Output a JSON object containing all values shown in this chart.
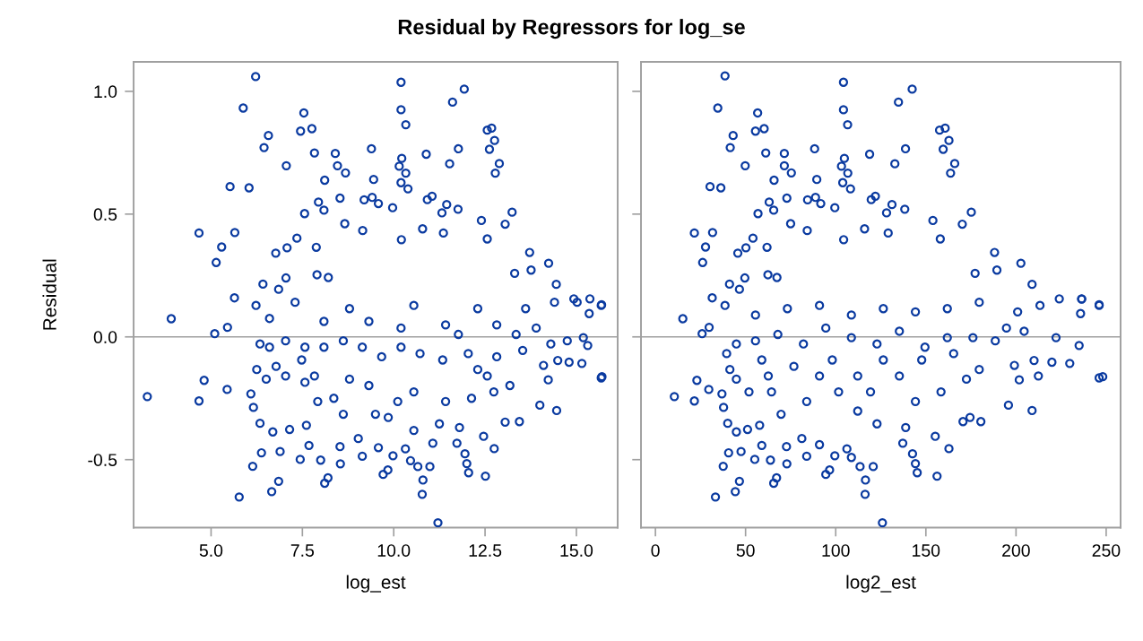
{
  "chart_data": [
    {
      "type": "scatter",
      "title": "Residual by Regressors for log_se",
      "xlabel": "log_est",
      "ylabel": "Residual",
      "marker": "circle",
      "grid": false,
      "xlim": [
        2.88,
        16.13
      ],
      "ylim": [
        -0.777,
        1.12
      ],
      "xticks": [
        {
          "value": 5,
          "label": "5.0"
        },
        {
          "value": 7.5,
          "label": "7.5"
        },
        {
          "value": 10,
          "label": "10.0"
        },
        {
          "value": 12.5,
          "label": "12.5"
        },
        {
          "value": 15,
          "label": "15.0"
        }
      ],
      "yticks": [
        {
          "value": -0.5,
          "label": "-0.5"
        },
        {
          "value": 0,
          "label": "0.0"
        },
        {
          "value": 0.5,
          "label": "0.5"
        },
        {
          "value": 1,
          "label": "1.0"
        }
      ],
      "ref_lines": [
        {
          "axis": "y",
          "value": 0,
          "color": "#a0a0a0"
        }
      ],
      "series": [
        {
          "color": "#0a3aa0",
          "x": [
            6.22,
            10.2,
            11.93,
            5.88,
            10.2,
            11.61,
            7.54,
            10.33,
            7.45,
            7.76,
            6.57,
            6.45,
            12.56,
            12.68,
            12.76,
            12.62,
            12.89,
            12.78,
            11.77,
            11.53,
            9.39,
            10.89,
            7.83,
            8.4,
            7.06,
            8.46,
            8.68,
            10.22,
            10.15,
            10.33,
            10.2,
            10.39,
            5.52,
            6.04,
            8.11,
            9.45,
            8.53,
            9.19,
            9.41,
            9.58,
            7.94,
            8.09,
            7.56,
            9.97,
            10.92,
            11.05,
            11.45,
            11.76,
            11.32,
            13.24,
            4.67,
            5.65,
            5.29,
            5.14,
            12.4,
            13.05,
            10.79,
            11.36,
            8.66,
            9.15,
            10.21,
            12.56,
            13.72,
            14.24,
            13.76,
            13.31,
            6.77,
            7.08,
            7.35,
            7.88,
            6.42,
            5.64,
            6.85,
            7.05,
            7.9,
            8.21,
            15.37,
            15.69,
            14.45,
            14.93,
            3.91,
            3.255,
            4.81,
            4.67,
            5.44,
            5.1,
            5.45,
            6.23,
            5.77,
            6.14,
            6.66,
            6.85,
            6.38,
            6.89,
            6.16,
            6.09,
            6.34,
            6.69,
            7.15,
            7.44,
            7.68,
            7.61,
            8.11,
            8.2,
            8.54,
            8.53,
            8.0,
            9.14,
            9.03,
            9.71,
            9.84,
            9.98,
            9.58,
            10.32,
            10.46,
            10.66,
            10.99,
            10.8,
            10.78,
            11.21,
            11.95,
            12.0,
            12.05,
            12.51,
            12.75,
            12.46,
            11.73,
            11.8,
            13.05,
            13.44,
            14.0,
            14.46,
            15.15,
            15.68,
            15.7,
            14.49,
            14.8,
            14.1,
            14.23,
            15.31,
            15.35,
            15.68,
            15.02,
            13.9,
            13.18,
            12.74,
            12.56,
            12.13,
            11.42,
            11.25,
            11.07,
            10.55,
            10.55,
            10.11,
            9.85,
            9.5,
            9.32,
            8.79,
            8.62,
            8.36,
            7.92,
            7.83,
            7.57,
            7.48,
            7.04,
            6.78,
            6.51,
            6.25,
            6.34,
            6.6,
            7.04,
            7.57,
            8.09,
            8.62,
            9.14,
            9.67,
            10.2,
            10.72,
            11.34,
            11.77,
            12.04,
            12.3,
            12.82,
            13.35,
            13.53,
            14.3,
            14.75,
            15.19,
            11.42,
            12.82,
            10.2,
            9.32,
            8.09,
            6.6,
            7.3,
            8.79,
            10.55,
            12.3,
            13.61,
            14.4
          ],
          "values": [
            1.06,
            1.037,
            1.009,
            0.932,
            0.925,
            0.956,
            0.912,
            0.864,
            0.838,
            0.848,
            0.82,
            0.771,
            0.842,
            0.85,
            0.8,
            0.764,
            0.706,
            0.667,
            0.766,
            0.705,
            0.766,
            0.744,
            0.749,
            0.747,
            0.697,
            0.697,
            0.668,
            0.727,
            0.695,
            0.667,
            0.628,
            0.603,
            0.612,
            0.607,
            0.638,
            0.641,
            0.565,
            0.558,
            0.568,
            0.543,
            0.549,
            0.516,
            0.502,
            0.526,
            0.559,
            0.573,
            0.539,
            0.52,
            0.505,
            0.508,
            0.423,
            0.425,
            0.366,
            0.303,
            0.474,
            0.459,
            0.44,
            0.423,
            0.461,
            0.433,
            0.396,
            0.399,
            0.344,
            0.3,
            0.272,
            0.259,
            0.341,
            0.363,
            0.402,
            0.365,
            0.215,
            0.159,
            0.194,
            0.24,
            0.253,
            0.242,
            0.155,
            0.131,
            0.214,
            0.155,
            0.074,
            -0.243,
            -0.177,
            -0.261,
            -0.214,
            0.013,
            0.039,
            0.128,
            -0.652,
            -0.527,
            -0.63,
            -0.588,
            -0.472,
            -0.467,
            -0.287,
            -0.232,
            -0.352,
            -0.387,
            -0.377,
            -0.499,
            -0.442,
            -0.36,
            -0.596,
            -0.574,
            -0.517,
            -0.447,
            -0.502,
            -0.486,
            -0.414,
            -0.56,
            -0.542,
            -0.484,
            -0.451,
            -0.456,
            -0.504,
            -0.528,
            -0.528,
            -0.583,
            -0.641,
            -0.757,
            -0.476,
            -0.516,
            -0.553,
            -0.567,
            -0.455,
            -0.405,
            -0.433,
            -0.369,
            -0.347,
            -0.345,
            -0.278,
            -0.3,
            -0.108,
            -0.167,
            -0.162,
            -0.096,
            -0.103,
            -0.116,
            -0.175,
            -0.035,
            0.095,
            0.128,
            0.141,
            0.036,
            -0.198,
            -0.224,
            -0.159,
            -0.25,
            -0.263,
            -0.354,
            -0.433,
            -0.381,
            -0.224,
            -0.263,
            -0.328,
            -0.315,
            -0.198,
            -0.172,
            -0.315,
            -0.25,
            -0.263,
            -0.159,
            -0.185,
            -0.094,
            -0.159,
            -0.12,
            -0.172,
            -0.133,
            -0.029,
            -0.042,
            -0.016,
            -0.042,
            -0.042,
            -0.016,
            -0.042,
            -0.081,
            -0.042,
            -0.068,
            -0.094,
            0.01,
            -0.068,
            -0.133,
            -0.081,
            0.01,
            -0.055,
            -0.029,
            -0.016,
            -0.003,
            0.049,
            0.049,
            0.036,
            0.063,
            0.063,
            0.075,
            0.141,
            0.115,
            0.128,
            0.115,
            0.115,
            0.141
          ]
        }
      ]
    },
    {
      "type": "scatter",
      "xlabel": "log2_est",
      "marker": "circle",
      "grid": false,
      "tick_labels": "x",
      "xlim": [
        -8,
        258
      ],
      "ylim": [
        -0.777,
        1.12
      ],
      "xticks": [
        0,
        50,
        100,
        150,
        200,
        250
      ],
      "yticks": [
        -0.5,
        0,
        0.5,
        1
      ],
      "ref_lines": [
        {
          "axis": "y",
          "value": 0,
          "color": "#a0a0a0"
        }
      ],
      "series": [
        {
          "color": "#0a3aa0",
          "x": [
            38.6,
            104.3,
            142.4,
            34.6,
            104.3,
            134.8,
            56.7,
            106.6,
            55.5,
            60.3,
            43.1,
            41.5,
            157.6,
            160.7,
            162.8,
            159.6,
            166.0,
            163.7,
            138.7,
            132.8,
            88.3,
            118.8,
            61.2,
            71.5,
            49.8,
            71.5,
            75.4,
            104.8,
            103.2,
            106.7,
            103.9,
            108.2,
            30.3,
            36.3,
            65.8,
            89.5,
            72.9,
            84.4,
            88.8,
            91.7,
            63.1,
            65.6,
            56.9,
            99.5,
            119.7,
            122.0,
            131.2,
            138.3,
            128.2,
            175.2,
            21.6,
            31.7,
            27.8,
            26.2,
            153.9,
            170.2,
            116.0,
            129.1,
            75.0,
            84.2,
            104.4,
            158.0,
            188.1,
            202.7,
            189.4,
            177.3,
            45.7,
            50.2,
            54.1,
            61.9,
            41.1,
            31.5,
            46.6,
            49.6,
            62.4,
            67.4,
            236.4,
            246.1,
            208.9,
            224.0,
            15.2,
            10.5,
            23.0,
            21.6,
            29.6,
            25.9,
            29.8,
            38.6,
            33.3,
            37.6,
            44.3,
            46.6,
            40.6,
            47.5,
            37.8,
            36.9,
            40.1,
            44.9,
            51.1,
            55.1,
            59.0,
            57.8,
            65.6,
            67.2,
            72.9,
            72.7,
            63.8,
            83.9,
            81.2,
            94.5,
            96.6,
            99.5,
            91.0,
            106.2,
            108.7,
            113.5,
            120.8,
            116.5,
            116.3,
            125.9,
            142.6,
            144.2,
            145.2,
            156.2,
            162.8,
            155.2,
            137.2,
            138.8,
            170.6,
            174.5,
            180.5,
            195.8,
            208.9,
            229.8,
            246.1,
            248.1,
            212.4,
            210.0,
            219.9,
            199.1,
            201.8,
            235.0,
            235.8,
            246.1,
            236.4,
            213.3,
            194.7,
            179.6,
            172.5,
            165.4,
            158.4,
            147.7,
            144.2,
            135.3,
            126.4,
            119.3,
            122.9,
            112.2,
            112.2,
            101.6,
            98.1,
            91.0,
            83.9,
            76.8,
            69.7,
            64.4,
            62.6,
            59.0,
            51.9,
            44.9,
            41.3,
            39.5,
            44.9,
            55.5,
            67.9,
            82.1,
            94.5,
            108.7,
            122.9,
            135.3,
            149.5,
            161.9,
            176.1,
            188.5,
            204.5,
            222.2,
            55.5,
            73.2,
            91.0,
            108.7,
            126.4,
            144.2,
            161.9,
            179.6,
            200.9
          ],
          "values": [
            1.063,
            1.037,
            1.009,
            0.932,
            0.925,
            0.956,
            0.912,
            0.864,
            0.838,
            0.848,
            0.82,
            0.771,
            0.842,
            0.85,
            0.8,
            0.764,
            0.706,
            0.667,
            0.766,
            0.705,
            0.766,
            0.744,
            0.749,
            0.747,
            0.697,
            0.697,
            0.668,
            0.727,
            0.695,
            0.667,
            0.628,
            0.603,
            0.612,
            0.607,
            0.638,
            0.641,
            0.565,
            0.558,
            0.568,
            0.543,
            0.549,
            0.516,
            0.502,
            0.526,
            0.559,
            0.573,
            0.539,
            0.52,
            0.505,
            0.508,
            0.423,
            0.425,
            0.366,
            0.303,
            0.474,
            0.459,
            0.44,
            0.423,
            0.461,
            0.433,
            0.396,
            0.399,
            0.344,
            0.3,
            0.272,
            0.259,
            0.341,
            0.363,
            0.402,
            0.365,
            0.215,
            0.159,
            0.194,
            0.24,
            0.253,
            0.242,
            0.155,
            0.131,
            0.214,
            0.155,
            0.074,
            -0.243,
            -0.177,
            -0.261,
            -0.214,
            0.013,
            0.039,
            0.128,
            -0.652,
            -0.527,
            -0.63,
            -0.588,
            -0.472,
            -0.467,
            -0.287,
            -0.232,
            -0.352,
            -0.387,
            -0.377,
            -0.499,
            -0.442,
            -0.36,
            -0.596,
            -0.574,
            -0.517,
            -0.447,
            -0.502,
            -0.486,
            -0.414,
            -0.56,
            -0.542,
            -0.484,
            -0.439,
            -0.456,
            -0.491,
            -0.528,
            -0.528,
            -0.583,
            -0.641,
            -0.757,
            -0.476,
            -0.516,
            -0.553,
            -0.567,
            -0.455,
            -0.405,
            -0.433,
            -0.369,
            -0.345,
            -0.328,
            -0.345,
            -0.278,
            -0.3,
            -0.108,
            -0.167,
            -0.162,
            -0.159,
            -0.096,
            -0.103,
            -0.116,
            -0.175,
            -0.035,
            0.095,
            0.128,
            0.154,
            0.128,
            0.036,
            -0.133,
            -0.172,
            -0.068,
            -0.224,
            -0.094,
            -0.263,
            -0.159,
            -0.094,
            -0.224,
            -0.354,
            -0.302,
            -0.159,
            -0.224,
            -0.094,
            -0.159,
            -0.263,
            -0.12,
            -0.315,
            -0.224,
            -0.159,
            -0.094,
            -0.224,
            -0.172,
            -0.133,
            -0.068,
            -0.029,
            -0.016,
            0.01,
            -0.029,
            0.036,
            -0.003,
            -0.029,
            0.023,
            -0.042,
            -0.003,
            -0.003,
            -0.016,
            0.023,
            -0.003,
            0.089,
            0.115,
            0.128,
            0.089,
            0.115,
            0.102,
            0.115,
            0.141,
            0.102
          ]
        }
      ]
    }
  ]
}
